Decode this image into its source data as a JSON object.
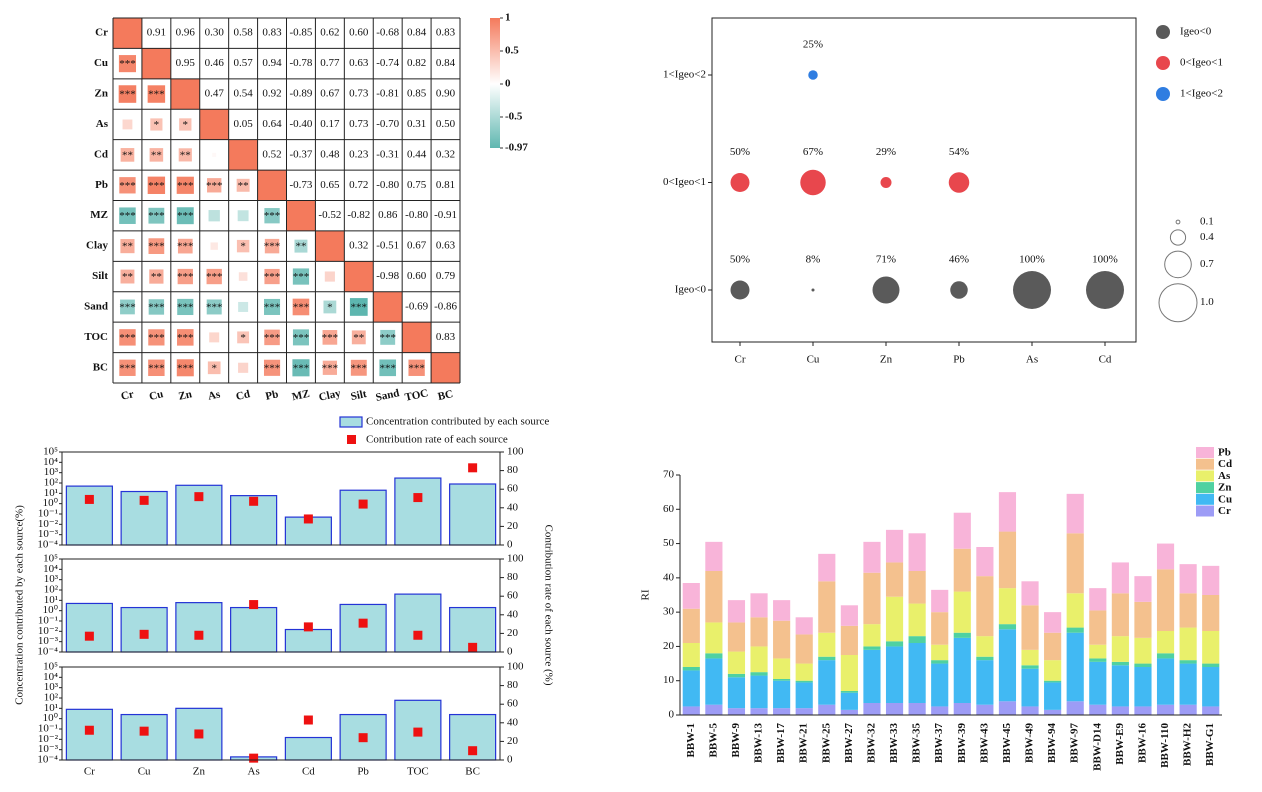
{
  "chart_data": [
    {
      "type": "heatmap",
      "variables": [
        "Cr",
        "Cu",
        "Zn",
        "As",
        "Cd",
        "Pb",
        "MZ",
        "Clay",
        "Silt",
        "Sand",
        "TOC",
        "BC"
      ],
      "values": [
        [
          1,
          0.91,
          0.96,
          0.3,
          0.58,
          0.83,
          -0.85,
          0.62,
          0.6,
          -0.68,
          0.84,
          0.83
        ],
        [
          null,
          1,
          0.95,
          0.46,
          0.57,
          0.94,
          -0.78,
          0.77,
          0.63,
          -0.74,
          0.82,
          0.84
        ],
        [
          null,
          null,
          1,
          0.47,
          0.54,
          0.92,
          -0.89,
          0.67,
          0.73,
          -0.81,
          0.85,
          0.9
        ],
        [
          null,
          null,
          null,
          1,
          0.05,
          0.64,
          -0.4,
          0.17,
          0.73,
          -0.7,
          0.31,
          0.5
        ],
        [
          null,
          null,
          null,
          null,
          1,
          0.52,
          -0.37,
          0.48,
          0.23,
          -0.31,
          0.44,
          0.32
        ],
        [
          null,
          null,
          null,
          null,
          null,
          1,
          -0.73,
          0.65,
          0.72,
          -0.8,
          0.75,
          0.81
        ],
        [
          null,
          null,
          null,
          null,
          null,
          null,
          1,
          -0.52,
          -0.82,
          0.86,
          -0.8,
          -0.91
        ],
        [
          null,
          null,
          null,
          null,
          null,
          null,
          null,
          1,
          0.32,
          -0.51,
          0.67,
          0.63
        ],
        [
          null,
          null,
          null,
          null,
          null,
          null,
          null,
          null,
          1,
          -0.98,
          0.6,
          0.79
        ],
        [
          null,
          null,
          null,
          null,
          null,
          null,
          null,
          null,
          null,
          1,
          -0.69,
          -0.86
        ],
        [
          null,
          null,
          null,
          null,
          null,
          null,
          null,
          null,
          null,
          null,
          1,
          0.83
        ],
        [
          null,
          null,
          null,
          null,
          null,
          null,
          null,
          null,
          null,
          null,
          null,
          1
        ]
      ],
      "value_labels": [
        [
          null,
          "0.91",
          "0.96",
          "0.30",
          "0.58",
          "0.83",
          "-0.85",
          "0.62",
          "0.60",
          "-0.68",
          "0.84",
          "0.83"
        ],
        [
          null,
          null,
          "0.95",
          "0.46",
          "0.57",
          "0.94",
          "-0.78",
          "0.77",
          "0.63",
          "-0.74",
          "0.82",
          "0.84"
        ],
        [
          null,
          null,
          null,
          "0.47",
          "0.54",
          "0.92",
          "-0.89",
          "0.67",
          "0.73",
          "-0.81",
          "0.85",
          "0.90"
        ],
        [
          null,
          null,
          null,
          null,
          "0.05",
          "0.64",
          "-0.40",
          "0.17",
          "0.73",
          "-0.70",
          "0.31",
          "0.50"
        ],
        [
          null,
          null,
          null,
          null,
          null,
          "0.52",
          "-0.37",
          "0.48",
          "0.23",
          "-0.31",
          "0.44",
          "0.32"
        ],
        [
          null,
          null,
          null,
          null,
          null,
          null,
          "-0.73",
          "0.65",
          "0.72",
          "-0.80",
          "0.75",
          "0.81"
        ],
        [
          null,
          null,
          null,
          null,
          null,
          null,
          null,
          "-0.52",
          "-0.82",
          "0.86",
          "-0.80",
          "-0.91"
        ],
        [
          null,
          null,
          null,
          null,
          null,
          null,
          null,
          null,
          "0.32",
          "-0.51",
          "0.67",
          "0.63"
        ],
        [
          null,
          null,
          null,
          null,
          null,
          null,
          null,
          null,
          null,
          "-0.98",
          "0.60",
          "0.79"
        ],
        [
          null,
          null,
          null,
          null,
          null,
          null,
          null,
          null,
          null,
          null,
          "-0.69",
          "-0.86"
        ],
        [
          null,
          null,
          null,
          null,
          null,
          null,
          null,
          null,
          null,
          null,
          null,
          "0.83"
        ],
        [
          null,
          null,
          null,
          null,
          null,
          null,
          null,
          null,
          null,
          null,
          null,
          null
        ]
      ],
      "stars": [
        [
          null,
          null,
          null,
          null,
          null,
          null,
          null,
          null,
          null,
          null,
          null,
          null
        ],
        [
          "***",
          null,
          null,
          null,
          null,
          null,
          null,
          null,
          null,
          null,
          null,
          null
        ],
        [
          "***",
          "***",
          null,
          null,
          null,
          null,
          null,
          null,
          null,
          null,
          null,
          null
        ],
        [
          null,
          "*",
          "*",
          null,
          null,
          null,
          null,
          null,
          null,
          null,
          null,
          null
        ],
        [
          "**",
          "**",
          "**",
          null,
          null,
          null,
          null,
          null,
          null,
          null,
          null,
          null
        ],
        [
          "***",
          "***",
          "***",
          "***",
          "**",
          null,
          null,
          null,
          null,
          null,
          null,
          null
        ],
        [
          "***",
          "***",
          "***",
          null,
          null,
          "***",
          null,
          null,
          null,
          null,
          null,
          null
        ],
        [
          "**",
          "***",
          "***",
          null,
          "*",
          "***",
          "**",
          null,
          null,
          null,
          null,
          null
        ],
        [
          "**",
          "**",
          "***",
          "***",
          null,
          "***",
          "***",
          null,
          null,
          null,
          null,
          null
        ],
        [
          "***",
          "***",
          "***",
          "***",
          null,
          "***",
          "***",
          "*",
          "***",
          null,
          null,
          null
        ],
        [
          "***",
          "***",
          "***",
          null,
          "*",
          "***",
          "***",
          "***",
          "**",
          "***",
          null,
          null
        ],
        [
          "***",
          "***",
          "***",
          "*",
          null,
          "***",
          "***",
          "***",
          "***",
          "***",
          "***",
          null
        ]
      ],
      "colorbar": {
        "lim": [
          -0.97,
          1
        ],
        "ticks": [
          1,
          0.5,
          0,
          -0.5,
          -0.97
        ],
        "colors": [
          "#5fb7b0",
          "#ffffff",
          "#f47a5c"
        ]
      }
    },
    {
      "type": "bubble",
      "categories": [
        "Cr",
        "Cu",
        "Zn",
        "Pb",
        "As",
        "Cd"
      ],
      "y_categories": [
        "Igeo<0",
        "0<Igeo<1",
        "1<Igeo<2"
      ],
      "series": [
        {
          "name": "Igeo<0",
          "color": "#5a5a5a",
          "values": [
            50,
            8,
            71,
            46,
            100,
            100
          ],
          "value_labels": [
            "50%",
            "8%",
            "71%",
            "46%",
            "100%",
            "100%"
          ]
        },
        {
          "name": "0<Igeo<1",
          "color": "#e8474d",
          "values": [
            50,
            67,
            29,
            54,
            null,
            null
          ],
          "value_labels": [
            "50%",
            "67%",
            "29%",
            "54%",
            null,
            null
          ]
        },
        {
          "name": "1<Igeo<2",
          "color": "#2f7de1",
          "values": [
            null,
            25,
            null,
            null,
            null,
            null
          ],
          "value_labels": [
            null,
            "25%",
            null,
            null,
            null,
            null
          ]
        }
      ],
      "size_legend": [
        0.1,
        0.4,
        0.7,
        {
          "value": 1,
          "label": "1.0"
        }
      ]
    },
    {
      "type": "combo",
      "categories": [
        "Cr",
        "Cu",
        "Zn",
        "As",
        "Cd",
        "Pb",
        "TOC",
        "BC"
      ],
      "ylabel": "Concentration contributed by each source(%)",
      "y2label": "Contribution rate of each source (%)",
      "log": true,
      "ylim": [
        0.0001,
        100000
      ],
      "yticks": [
        {
          "value": 0.0001,
          "label": "10⁻⁴"
        },
        {
          "value": 0.001,
          "label": "10⁻³"
        },
        {
          "value": 0.01,
          "label": "10⁻²"
        },
        {
          "value": 0.1,
          "label": "10⁻¹"
        },
        {
          "value": 1,
          "label": "10⁰"
        },
        {
          "value": 10,
          "label": "10¹"
        },
        {
          "value": 100,
          "label": "10²"
        },
        {
          "value": 1000,
          "label": "10³"
        },
        {
          "value": 10000,
          "label": "10⁴"
        },
        {
          "value": 100000,
          "label": "10⁵"
        }
      ],
      "y2lim": [
        0,
        100
      ],
      "y2ticks": [
        0,
        20,
        40,
        60,
        80,
        100
      ],
      "series": [
        {
          "name": "Concentration contributed by each source",
          "color": "#a8dde1",
          "edge": "#2433d6",
          "values": [
            [
              50,
              15,
              60,
              6,
              0.05,
              20,
              300,
              80
            ],
            [
              5,
              2,
              6,
              2,
              0.015,
              4,
              40,
              2
            ],
            [
              8,
              2.5,
              10,
              0.0002,
              0.015,
              2.5,
              60,
              2.5
            ]
          ]
        },
        {
          "name": "Contribution rate of each source",
          "color": "#ee1111",
          "axis": "y2",
          "values": [
            [
              49,
              48,
              52,
              47,
              28,
              44,
              51,
              83
            ],
            [
              17,
              19,
              18,
              51,
              27,
              31,
              18,
              5
            ],
            [
              32,
              31,
              28,
              2,
              43,
              24,
              30,
              10
            ]
          ]
        }
      ]
    },
    {
      "type": "stacked_bar",
      "ylabel": "RI",
      "categories": [
        "BBW-1",
        "BBW-5",
        "BBW-9",
        "BBW-13",
        "BBW-17",
        "BBW-21",
        "BBW-25",
        "BBW-27",
        "BBW-32",
        "BBW-33",
        "BBW-35",
        "BBW-37",
        "BBW-39",
        "BBW-43",
        "BBW-45",
        "BBW-49",
        "BBW-94",
        "BBW-97",
        "BBW-D14",
        "BBW-E9",
        "BBW-16",
        "BBW-110",
        "BBW-H2",
        "BBW-G1"
      ],
      "ylim": [
        0,
        70
      ],
      "yticks": [
        0,
        10,
        20,
        30,
        40,
        50,
        60,
        70
      ],
      "series": [
        {
          "name": "Cr",
          "color": "#9d9cf6",
          "values": [
            2.5,
            3,
            2,
            2,
            2,
            2,
            3,
            1.5,
            3.5,
            3.5,
            3.5,
            2.5,
            3.5,
            3,
            4,
            2.5,
            1.5,
            4,
            3,
            2.5,
            2.5,
            3,
            3,
            2.5
          ]
        },
        {
          "name": "Cu",
          "color": "#41b9f3",
          "values": [
            10.5,
            13.5,
            9,
            9.5,
            8,
            7.5,
            13,
            5,
            15.5,
            16.5,
            17.5,
            12.5,
            19,
            13,
            21,
            11,
            8,
            20,
            12.5,
            12,
            11.5,
            13.5,
            12,
            11.5
          ]
        },
        {
          "name": "Zn",
          "color": "#4fd1a1",
          "values": [
            1,
            1.5,
            1,
            1,
            0.5,
            0.5,
            1,
            0.5,
            1,
            1.5,
            2,
            1,
            1.5,
            1,
            1.5,
            1,
            0.5,
            1.5,
            1,
            1,
            1,
            1.5,
            1,
            1
          ]
        },
        {
          "name": "As",
          "color": "#e9f06b",
          "values": [
            7,
            9,
            6.5,
            7.5,
            6,
            5,
            7,
            10.5,
            6.5,
            13,
            9.5,
            4.5,
            12,
            6,
            10.5,
            4.5,
            6,
            10,
            4,
            7.5,
            7.5,
            6.5,
            9.5,
            9.5
          ]
        },
        {
          "name": "Cd",
          "color": "#f4c18e",
          "values": [
            10,
            15,
            8.5,
            8.5,
            11,
            8.5,
            15,
            8.5,
            15,
            10,
            9.5,
            9.5,
            12.5,
            17.5,
            16.5,
            13,
            8,
            17.5,
            10,
            12.5,
            10.5,
            18,
            10,
            10.5
          ]
        },
        {
          "name": "Pb",
          "color": "#f8b4d9",
          "values": [
            7.5,
            8.5,
            6.5,
            7,
            6,
            5,
            8,
            6,
            9,
            9.5,
            11,
            6.5,
            10.5,
            8.5,
            11.5,
            7,
            6,
            11.5,
            6.5,
            9,
            7.5,
            7.5,
            8.5,
            8.5
          ]
        }
      ]
    }
  ]
}
